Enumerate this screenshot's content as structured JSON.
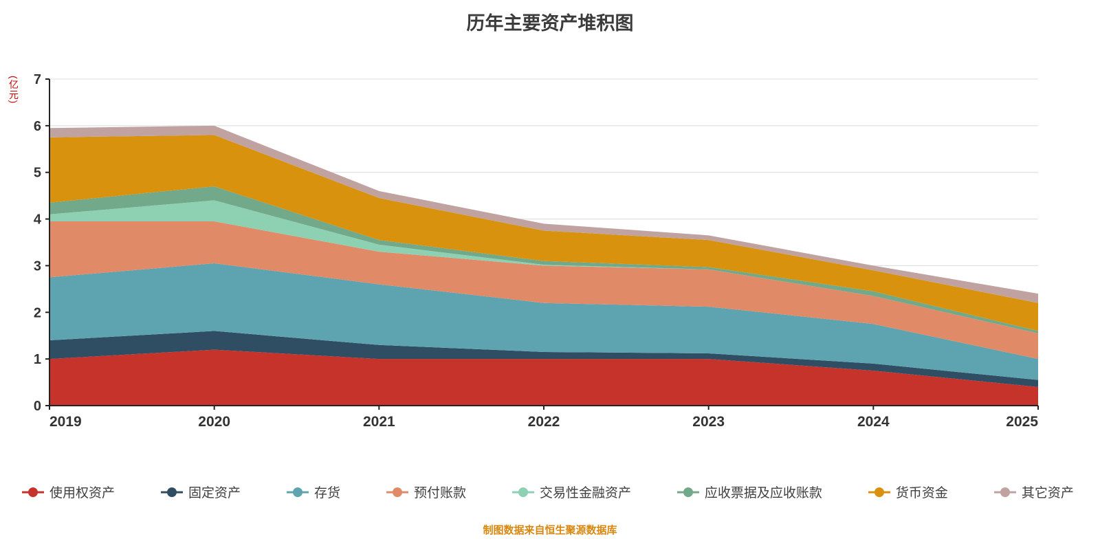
{
  "chart": {
    "title": "历年主要资产堆积图",
    "y_axis_unit": "(亿元)",
    "source_note": "制图数据来自恒生聚源数据库"
  },
  "chart_data": {
    "type": "area",
    "stacked": true,
    "title": "历年主要资产堆积图",
    "xlabel": "",
    "ylabel": "(亿元)",
    "categories": [
      "2019",
      "2020",
      "2021",
      "2022",
      "2023",
      "2024",
      "2025"
    ],
    "series": [
      {
        "name": "使用权资产",
        "color": "#c5332b",
        "values": [
          1.0,
          1.2,
          1.0,
          1.0,
          1.0,
          0.75,
          0.4
        ]
      },
      {
        "name": "固定资产",
        "color": "#2f4d63",
        "values": [
          0.4,
          0.4,
          0.3,
          0.15,
          0.12,
          0.15,
          0.15
        ]
      },
      {
        "name": "存货",
        "color": "#5da4b0",
        "values": [
          1.35,
          1.45,
          1.3,
          1.05,
          1.0,
          0.85,
          0.45
        ]
      },
      {
        "name": "预付账款",
        "color": "#e18a68",
        "values": [
          1.2,
          0.9,
          0.7,
          0.8,
          0.8,
          0.6,
          0.55
        ]
      },
      {
        "name": "交易性金融资产",
        "color": "#8ed1b2",
        "values": [
          0.15,
          0.45,
          0.15,
          0.02,
          0.0,
          0.0,
          0.0
        ]
      },
      {
        "name": "应收票据及应收账款",
        "color": "#71a98a",
        "values": [
          0.25,
          0.3,
          0.1,
          0.08,
          0.05,
          0.1,
          0.05
        ]
      },
      {
        "name": "货币资金",
        "color": "#d8920e",
        "values": [
          1.4,
          1.1,
          0.9,
          0.65,
          0.58,
          0.45,
          0.6
        ]
      },
      {
        "name": "其它资产",
        "color": "#c0a2a0",
        "values": [
          0.2,
          0.2,
          0.15,
          0.15,
          0.1,
          0.1,
          0.2
        ]
      }
    ],
    "ylim": [
      0,
      7
    ],
    "yticks": [
      0,
      1,
      2,
      3,
      4,
      5,
      6,
      7
    ],
    "grid": true,
    "legend_position": "bottom"
  }
}
